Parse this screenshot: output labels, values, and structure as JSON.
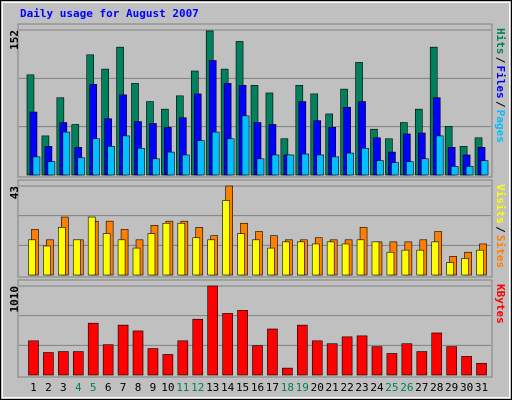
{
  "chart_data": [
    {
      "type": "bar",
      "title": "Daily usage for August 2007",
      "ylim": [
        0,
        152
      ],
      "yticks": [
        152
      ],
      "separator": "/",
      "series": [
        {
          "name": "Hits",
          "color": "#00805c",
          "values": [
            105,
            41,
            81,
            53,
            126,
            111,
            134,
            96,
            77,
            69,
            83,
            109,
            151,
            111,
            140,
            94,
            86,
            38,
            94,
            85,
            64,
            90,
            118,
            48,
            38,
            55,
            69,
            134,
            51,
            30,
            39
          ]
        },
        {
          "name": "Files",
          "color": "#0000ff",
          "values": [
            66,
            30,
            55,
            29,
            95,
            59,
            84,
            56,
            54,
            50,
            60,
            85,
            120,
            96,
            94,
            55,
            53,
            21,
            77,
            57,
            50,
            71,
            77,
            39,
            24,
            43,
            44,
            81,
            29,
            21,
            29
          ]
        },
        {
          "name": "Pages",
          "color": "#00c0ff",
          "values": [
            19,
            14,
            45,
            18,
            38,
            30,
            41,
            28,
            17,
            24,
            21,
            36,
            45,
            38,
            62,
            17,
            21,
            21,
            22,
            21,
            19,
            23,
            28,
            15,
            13,
            14,
            17,
            41,
            9,
            9,
            15
          ]
        }
      ]
    },
    {
      "type": "bar",
      "ylim": [
        0,
        43
      ],
      "yticks": [
        43
      ],
      "separator": "/",
      "series": [
        {
          "name": "Visits",
          "color": "#ffff00",
          "values": [
            17,
            14,
            23,
            17,
            28,
            20,
            17,
            13,
            20,
            25,
            25,
            18,
            17,
            36,
            20,
            17,
            13,
            16,
            16,
            15,
            16,
            15,
            17,
            16,
            11,
            12,
            12,
            16,
            6,
            8,
            12
          ]
        },
        {
          "name": "Sites",
          "color": "#ff8000",
          "values": [
            22,
            17,
            28,
            17,
            26,
            26,
            22,
            17,
            24,
            26,
            26,
            23,
            19,
            43,
            25,
            21,
            19,
            17,
            17,
            18,
            17,
            17,
            23,
            16,
            16,
            16,
            17,
            21,
            9,
            11,
            15
          ]
        }
      ]
    },
    {
      "type": "bar",
      "ylim": [
        0,
        1010
      ],
      "yticks": [
        1010
      ],
      "categories": [
        "1",
        "2",
        "3",
        "4",
        "5",
        "6",
        "7",
        "8",
        "9",
        "10",
        "11",
        "12",
        "13",
        "14",
        "15",
        "16",
        "17",
        "18",
        "19",
        "20",
        "21",
        "22",
        "23",
        "24",
        "25",
        "26",
        "27",
        "28",
        "29",
        "30",
        "31"
      ],
      "category_colors": [
        "#000000",
        "#000000",
        "#000000",
        "#00805c",
        "#00805c",
        "#000000",
        "#000000",
        "#000000",
        "#000000",
        "#000000",
        "#00805c",
        "#00805c",
        "#000000",
        "#000000",
        "#000000",
        "#000000",
        "#000000",
        "#00805c",
        "#00805c",
        "#000000",
        "#000000",
        "#000000",
        "#000000",
        "#000000",
        "#00805c",
        "#00805c",
        "#000000",
        "#000000",
        "#000000",
        "#000000",
        "#000000"
      ],
      "series": [
        {
          "name": "KBytes",
          "color": "#ff0000",
          "values": [
            388,
            255,
            266,
            266,
            588,
            344,
            566,
            500,
            300,
            233,
            388,
            633,
            1010,
            699,
            733,
            333,
            522,
            78,
            566,
            388,
            355,
            433,
            444,
            322,
            244,
            355,
            266,
            477,
            322,
            211,
            133
          ]
        }
      ]
    }
  ]
}
